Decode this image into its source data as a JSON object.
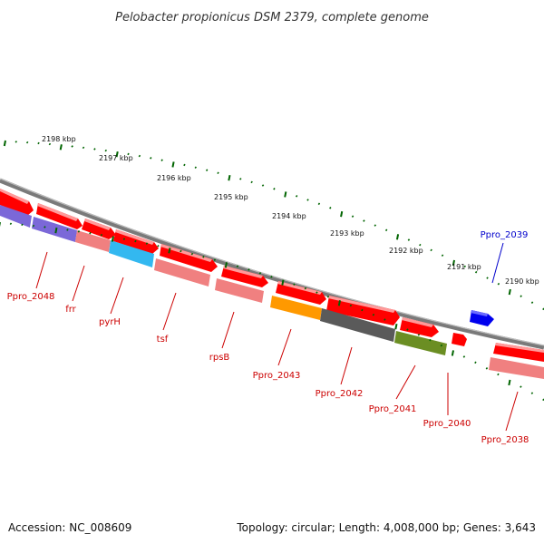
{
  "title": "Pelobacter propionicus DSM 2379, complete genome",
  "footer": {
    "accession": "Accession: NC_008609",
    "topology": "Topology: circular; Length: 4,008,000 bp; Genes: 3,643"
  },
  "colors": {
    "backbone": "#7a7a7a",
    "gene_red": "#ff0000",
    "gene_pink": "#f08080",
    "gene_purple": "#7b68d8",
    "gene_cyan": "#33b8f0",
    "gene_orange": "#ff9900",
    "gene_gray": "#5a5a5a",
    "gene_olive": "#6b8e23",
    "gene_blue": "#0000ee",
    "tick_green": "#006400",
    "label_red": "#cc0000",
    "label_blue": "#0000cc"
  },
  "scale_labels": [
    "2198 kbp",
    "2197 kbp",
    "2196 kbp",
    "2195 kbp",
    "2194 kbp",
    "2193 kbp",
    "2192 kbp",
    "2191 kbp",
    "2190 kbp"
  ],
  "gene_labels": [
    {
      "name": "Ppro_2048",
      "color": "red"
    },
    {
      "name": "frr",
      "color": "red"
    },
    {
      "name": "pyrH",
      "color": "red"
    },
    {
      "name": "tsf",
      "color": "red"
    },
    {
      "name": "rpsB",
      "color": "red"
    },
    {
      "name": "Ppro_2043",
      "color": "red"
    },
    {
      "name": "Ppro_2042",
      "color": "red"
    },
    {
      "name": "Ppro_2041",
      "color": "red"
    },
    {
      "name": "Ppro_2040",
      "color": "red"
    },
    {
      "name": "Ppro_2038",
      "color": "red"
    },
    {
      "name": "Ppro_2039",
      "color": "blue"
    }
  ]
}
